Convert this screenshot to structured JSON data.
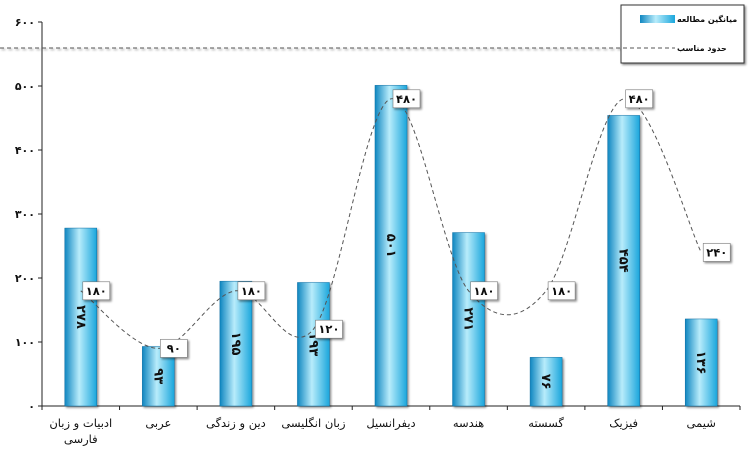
{
  "chart_data": {
    "type": "bar",
    "categories": [
      [
        "ادبیات و زبان",
        "فارسی"
      ],
      [
        "عربی"
      ],
      [
        "دین و زندگی"
      ],
      [
        "زبان انگلیسی"
      ],
      [
        "دیفرانسیل"
      ],
      [
        "هندسه"
      ],
      [
        "گسسته"
      ],
      [
        "فیزیک"
      ],
      [
        "شیمی"
      ]
    ],
    "series": [
      {
        "name": "میانگین مطالعه",
        "type": "bar",
        "color": "#29b6e8",
        "values": [
          278,
          93,
          195,
          193,
          501,
          271,
          76,
          454,
          136
        ],
        "value_labels": [
          "۲۷۸",
          "۹۳",
          "۱۹۵",
          "۱۹۳",
          "۵۰۱",
          "۲۷۱",
          "۷۶",
          "۴۵۴",
          "۱۳۶"
        ]
      },
      {
        "name": "حدود مناسب",
        "type": "line",
        "style": "dashed",
        "color": "#555555",
        "values": [
          180,
          90,
          180,
          120,
          480,
          180,
          180,
          480,
          240
        ],
        "value_labels": [
          "۱۸۰",
          "۹۰",
          "۱۸۰",
          "۱۲۰",
          "۴۸۰",
          "۱۸۰",
          "۱۸۰",
          "۴۸۰",
          "۲۴۰"
        ]
      }
    ],
    "ylim": [
      0,
      600
    ],
    "yticks": [
      0,
      100,
      200,
      300,
      400,
      500,
      600
    ],
    "ytick_labels": [
      "۰",
      "۱۰۰",
      "۲۰۰",
      "۳۰۰",
      "۴۰۰",
      "۵۰۰",
      "۶۰۰"
    ],
    "title": "",
    "xlabel": "",
    "ylabel": "",
    "grid": false,
    "legend_position": "top-right"
  }
}
